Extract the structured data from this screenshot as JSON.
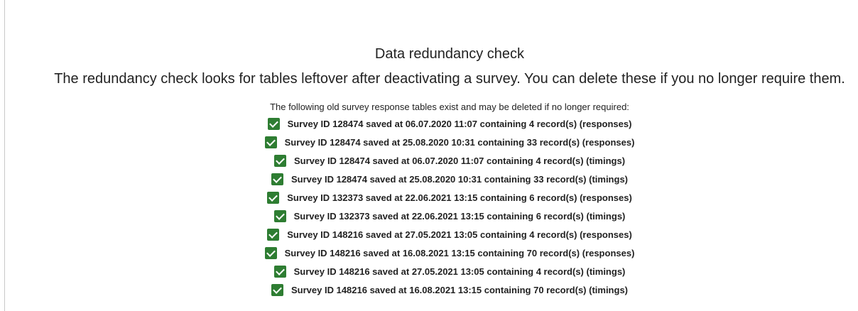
{
  "title": "Data redundancy check",
  "subtitle": "The redundancy check looks for tables leftover after deactivating a survey. You can delete these if you no longer require them.",
  "intro": "The following old survey response tables exist and may be deleted if no longer required:",
  "accent_color": "#2e7d32",
  "items": [
    {
      "label": "Survey ID 128474 saved at 06.07.2020 11:07 containing 4 record(s) (responses)",
      "checked": true
    },
    {
      "label": "Survey ID 128474 saved at 25.08.2020 10:31 containing 33 record(s) (responses)",
      "checked": true
    },
    {
      "label": "Survey ID 128474 saved at 06.07.2020 11:07 containing 4 record(s) (timings)",
      "checked": true
    },
    {
      "label": "Survey ID 128474 saved at 25.08.2020 10:31 containing 33 record(s) (timings)",
      "checked": true
    },
    {
      "label": "Survey ID 132373 saved at 22.06.2021 13:15 containing 6 record(s) (responses)",
      "checked": true
    },
    {
      "label": "Survey ID 132373 saved at 22.06.2021 13:15 containing 6 record(s) (timings)",
      "checked": true
    },
    {
      "label": "Survey ID 148216 saved at 27.05.2021 13:05 containing 4 record(s) (responses)",
      "checked": true
    },
    {
      "label": "Survey ID 148216 saved at 16.08.2021 13:15 containing 70 record(s) (responses)",
      "checked": true
    },
    {
      "label": "Survey ID 148216 saved at 27.05.2021 13:05 containing 4 record(s) (timings)",
      "checked": true
    },
    {
      "label": "Survey ID 148216 saved at 16.08.2021 13:15 containing 70 record(s) (timings)",
      "checked": true
    }
  ]
}
